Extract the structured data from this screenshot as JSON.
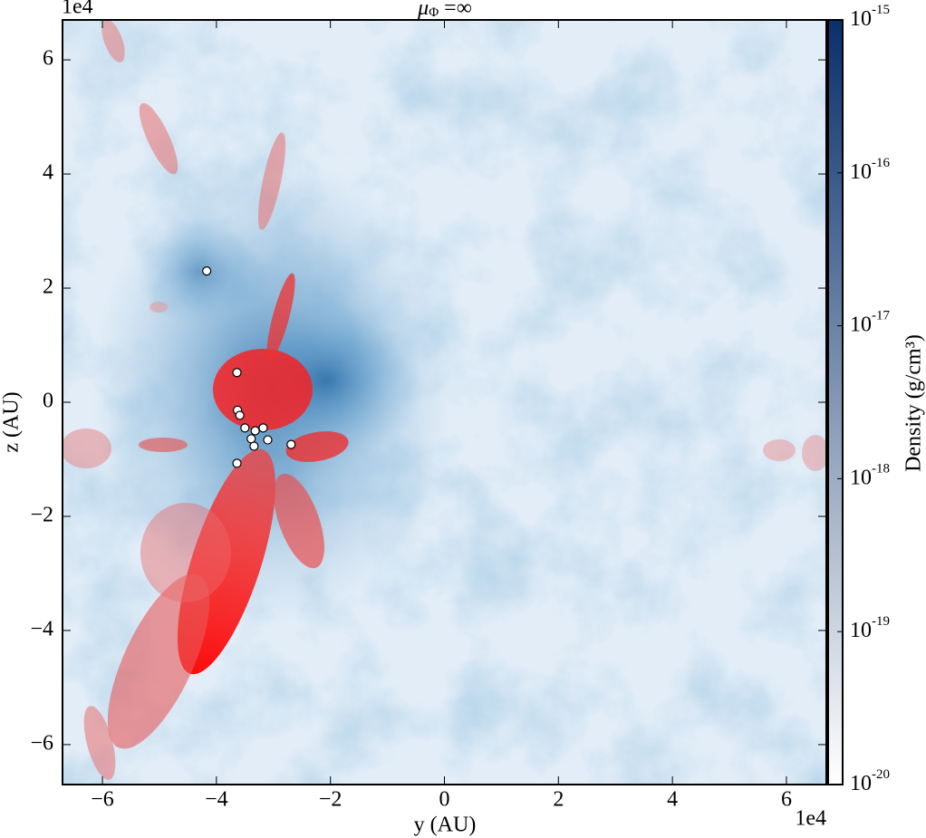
{
  "chart_data": {
    "type": "scatter",
    "title": {
      "symbol": "μ",
      "subscript": "Φ",
      "text": " =∞"
    },
    "x_label": "y  (AU)",
    "y_label": "z  (AU)",
    "x_offset": "1e4",
    "y_offset": "1e4",
    "xlim": [
      -6.7,
      6.7
    ],
    "ylim": [
      -6.7,
      6.7
    ],
    "xticks": [
      {
        "value": -6,
        "label": "−6"
      },
      {
        "value": -4,
        "label": "−4"
      },
      {
        "value": -2,
        "label": "−2"
      },
      0,
      2,
      4,
      6
    ],
    "yticks": [
      {
        "value": -6,
        "label": "−6"
      },
      {
        "value": -4,
        "label": "−4"
      },
      {
        "value": -2,
        "label": "−2"
      },
      0,
      2,
      4,
      6
    ],
    "series": [
      {
        "color": "#ffffff",
        "edgecolor": "#000000",
        "x": [
          -4.17,
          -3.64,
          -3.63,
          -3.59,
          -3.5,
          -3.39,
          -3.32,
          -3.34,
          -3.18,
          -3.1,
          -2.69,
          -3.64
        ],
        "values": [
          2.3,
          0.52,
          -0.14,
          -0.23,
          -0.45,
          -0.64,
          -0.5,
          -0.77,
          -0.45,
          -0.66,
          -0.74,
          -1.07
        ]
      }
    ],
    "colorbar": {
      "label": "Density  (g/cm³)",
      "scale": "log",
      "lim": [
        1e-20,
        1e-15
      ],
      "colors": [
        "#ffffff",
        "#08306b"
      ],
      "ticks": [
        {
          "value": 1e-15,
          "label": "10",
          "exponent": "-15"
        },
        {
          "value": 1e-16,
          "label": "10",
          "exponent": "-16"
        },
        {
          "value": 1e-17,
          "label": "10",
          "exponent": "-17"
        },
        {
          "value": 1e-18,
          "label": "10",
          "exponent": "-18"
        },
        {
          "value": 1e-19,
          "label": "10",
          "exponent": "-19"
        },
        {
          "value": 1e-20,
          "label": "10",
          "exponent": "-20"
        }
      ]
    }
  }
}
